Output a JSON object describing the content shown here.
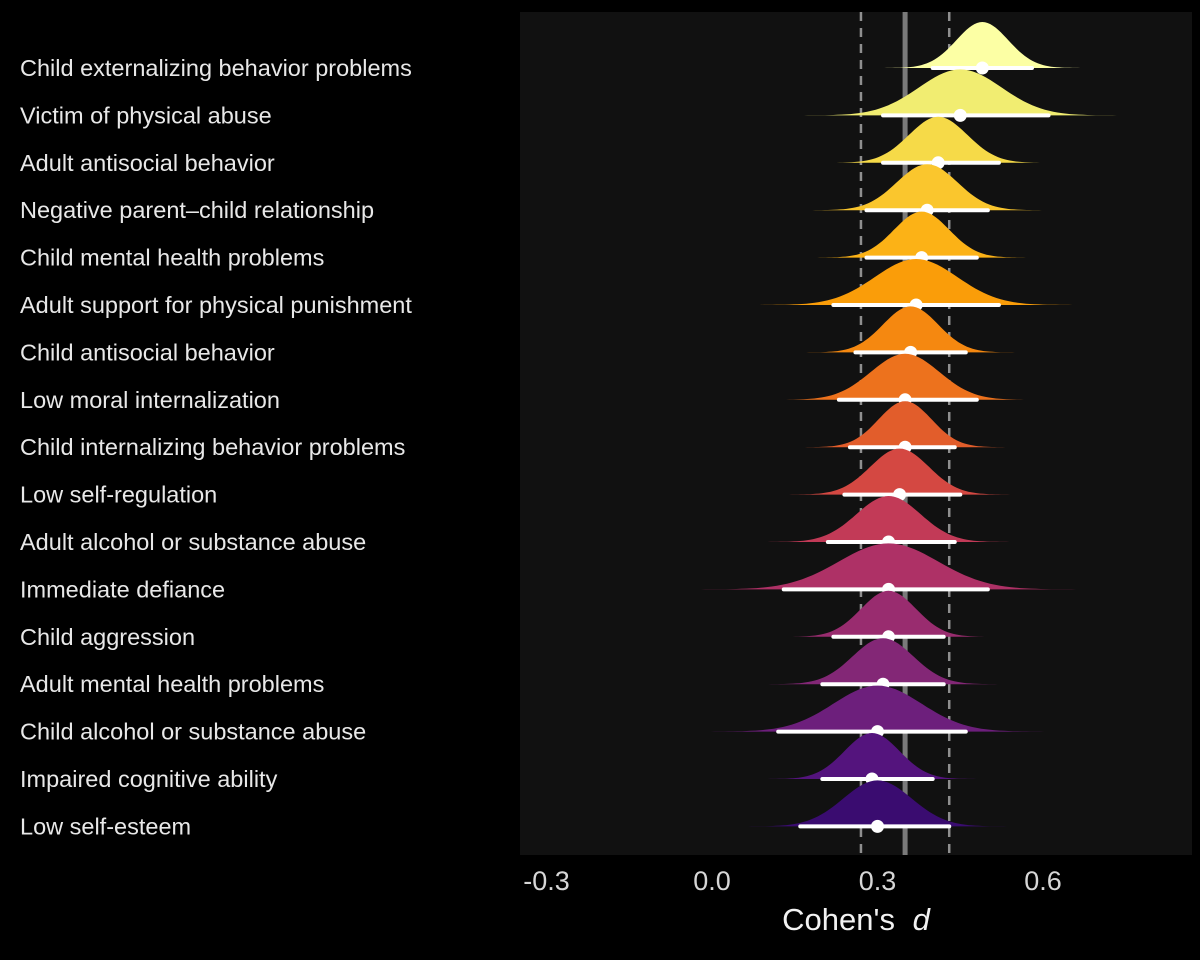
{
  "chart_data": {
    "type": "ridgeline",
    "title": "",
    "xlabel": {
      "prefix": "Cohen's",
      "emph": "d"
    },
    "x_ticks": [
      -0.3,
      0.0,
      0.3,
      0.6
    ],
    "x_tick_labels": [
      "-0.3",
      "0.0",
      "0.3",
      "0.6"
    ],
    "xlim": [
      -0.35,
      0.87
    ],
    "grid": false,
    "legend": "none",
    "reference_lines": {
      "solid_mean": 0.35,
      "dashed_interval": [
        0.27,
        0.43
      ]
    },
    "panel_background": "#111111",
    "label_color": "#e8e8e8",
    "tick_color": "#d6d6d6",
    "interval_color": "#ffffff",
    "rows": [
      {
        "label": "Child externalizing behavior problems",
        "mean": 0.49,
        "ci": [
          0.4,
          0.58
        ],
        "sd": 0.047,
        "color": "#fcffa4"
      },
      {
        "label": "Victim of physical abuse",
        "mean": 0.45,
        "ci": [
          0.31,
          0.61
        ],
        "sd": 0.075,
        "color": "#f1ed71"
      },
      {
        "label": "Adult antisocial behavior",
        "mean": 0.41,
        "ci": [
          0.31,
          0.52
        ],
        "sd": 0.053,
        "color": "#f6da48"
      },
      {
        "label": "Negative parent–child relationship",
        "mean": 0.39,
        "ci": [
          0.28,
          0.5
        ],
        "sd": 0.055,
        "color": "#fac62d"
      },
      {
        "label": "Child mental health problems",
        "mean": 0.38,
        "ci": [
          0.28,
          0.48
        ],
        "sd": 0.05,
        "color": "#fcb216"
      },
      {
        "label": "Adult support for physical punishment",
        "mean": 0.37,
        "ci": [
          0.22,
          0.52
        ],
        "sd": 0.075,
        "color": "#fa9d09"
      },
      {
        "label": "Child antisocial behavior",
        "mean": 0.36,
        "ci": [
          0.26,
          0.46
        ],
        "sd": 0.05,
        "color": "#f58810"
      },
      {
        "label": "Low moral internalization",
        "mean": 0.35,
        "ci": [
          0.23,
          0.48
        ],
        "sd": 0.062,
        "color": "#ed721d"
      },
      {
        "label": "Child internalizing behavior problems",
        "mean": 0.35,
        "ci": [
          0.25,
          0.44
        ],
        "sd": 0.048,
        "color": "#e25d2b"
      },
      {
        "label": "Low self-regulation",
        "mean": 0.34,
        "ci": [
          0.24,
          0.45
        ],
        "sd": 0.053,
        "color": "#d44842"
      },
      {
        "label": "Adult alcohol or substance abuse",
        "mean": 0.32,
        "ci": [
          0.21,
          0.44
        ],
        "sd": 0.058,
        "color": "#c23a57"
      },
      {
        "label": "Immediate defiance",
        "mean": 0.32,
        "ci": [
          0.13,
          0.5
        ],
        "sd": 0.09,
        "color": "#ae3166"
      },
      {
        "label": "Child aggression",
        "mean": 0.32,
        "ci": [
          0.22,
          0.42
        ],
        "sd": 0.05,
        "color": "#992c6f"
      },
      {
        "label": "Adult mental health problems",
        "mean": 0.31,
        "ci": [
          0.2,
          0.42
        ],
        "sd": 0.055,
        "color": "#832776"
      },
      {
        "label": "Child alcohol or substance abuse",
        "mean": 0.3,
        "ci": [
          0.12,
          0.46
        ],
        "sd": 0.08,
        "color": "#6d1f7c"
      },
      {
        "label": "Impaired cognitive ability",
        "mean": 0.29,
        "ci": [
          0.2,
          0.4
        ],
        "sd": 0.05,
        "color": "#54147d"
      },
      {
        "label": "Low self-esteem",
        "mean": 0.3,
        "ci": [
          0.16,
          0.43
        ],
        "sd": 0.062,
        "color": "#3a0c70"
      }
    ]
  }
}
